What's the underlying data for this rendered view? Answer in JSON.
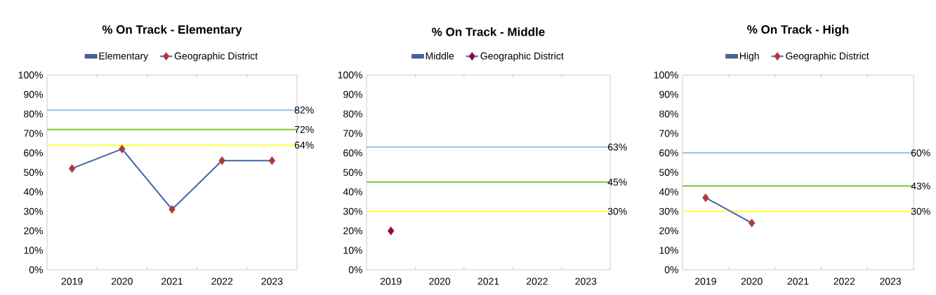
{
  "chart_data": [
    {
      "type": "line",
      "title": "% On Track - Elementary",
      "categories": [
        "2019",
        "2020",
        "2021",
        "2022",
        "2023"
      ],
      "series": [
        {
          "name": "Elementary",
          "type": "bar",
          "color": "#4360ad",
          "values": [
            null,
            null,
            null,
            null,
            null
          ]
        },
        {
          "name": "Geographic District",
          "color": "#4360ad",
          "colors": [
            "#b03a36",
            "#b03a36",
            "#b03a36",
            "#b03a36",
            "#b03a36"
          ],
          "values": [
            52,
            62,
            31,
            56,
            56
          ]
        }
      ],
      "ylim": [
        0,
        100
      ],
      "yticks": [
        {
          "value": 0,
          "label": "0%"
        },
        {
          "value": 10,
          "label": "10%"
        },
        {
          "value": 20,
          "label": "20%"
        },
        {
          "value": 30,
          "label": "30%"
        },
        {
          "value": 40,
          "label": "40%"
        },
        {
          "value": 50,
          "label": "50%"
        },
        {
          "value": 60,
          "label": "60%"
        },
        {
          "value": 70,
          "label": "70%"
        },
        {
          "value": 80,
          "label": "80%"
        },
        {
          "value": 90,
          "label": "90%"
        },
        {
          "value": 100,
          "label": "100%"
        }
      ],
      "ref_lines": [
        {
          "axis": "y",
          "value": 82,
          "label": "82%",
          "color": "#9dc8f0"
        },
        {
          "axis": "y",
          "value": 72,
          "label": "72%",
          "color": "#8ccb4a"
        },
        {
          "axis": "y",
          "value": 64,
          "label": "64%",
          "color": "#ffff55"
        }
      ],
      "marker": "diamond",
      "legend": "top"
    },
    {
      "type": "line",
      "title": "% On Track - Middle",
      "categories": [
        "2019",
        "2020",
        "2021",
        "2022",
        "2023"
      ],
      "series": [
        {
          "name": "Middle",
          "type": "bar",
          "color": "#4360ad",
          "values": [
            null,
            null,
            null,
            null,
            null
          ]
        },
        {
          "name": "Geographic District",
          "color": "#4360ad",
          "colors": [
            "#8b0a45",
            "#8b0a45",
            "#8b0a45",
            "#8b0a45",
            "#8b0a45"
          ],
          "values": [
            20,
            null,
            null,
            null,
            null
          ]
        }
      ],
      "ylim": [
        0,
        100
      ],
      "yticks": [
        {
          "value": 0,
          "label": "0%"
        },
        {
          "value": 10,
          "label": "10%"
        },
        {
          "value": 20,
          "label": "20%"
        },
        {
          "value": 30,
          "label": "30%"
        },
        {
          "value": 40,
          "label": "40%"
        },
        {
          "value": 50,
          "label": "50%"
        },
        {
          "value": 60,
          "label": "60%"
        },
        {
          "value": 70,
          "label": "70%"
        },
        {
          "value": 80,
          "label": "80%"
        },
        {
          "value": 90,
          "label": "90%"
        },
        {
          "value": 100,
          "label": "100%"
        }
      ],
      "ref_lines": [
        {
          "axis": "y",
          "value": 63,
          "label": "63%",
          "color": "#9dc8f0"
        },
        {
          "axis": "y",
          "value": 45,
          "label": "45%",
          "color": "#8ccb4a"
        },
        {
          "axis": "y",
          "value": 30,
          "label": "30%",
          "color": "#ffff55"
        }
      ],
      "marker": "diamond",
      "legend": "top"
    },
    {
      "type": "line",
      "title": "% On Track - High",
      "categories": [
        "2019",
        "2020",
        "2021",
        "2022",
        "2023"
      ],
      "series": [
        {
          "name": "High",
          "type": "bar",
          "color": "#4360ad",
          "values": [
            null,
            null,
            null,
            null,
            null
          ]
        },
        {
          "name": "Geographic District",
          "color": "#4360ad",
          "colors": [
            "#b03a36",
            "#b03a36",
            "#b03a36",
            "#b03a36",
            "#b03a36"
          ],
          "values": [
            37,
            24,
            null,
            null,
            null
          ]
        }
      ],
      "ylim": [
        0,
        100
      ],
      "yticks": [
        {
          "value": 0,
          "label": "0%"
        },
        {
          "value": 10,
          "label": "10%"
        },
        {
          "value": 20,
          "label": "20%"
        },
        {
          "value": 30,
          "label": "30%"
        },
        {
          "value": 40,
          "label": "40%"
        },
        {
          "value": 50,
          "label": "50%"
        },
        {
          "value": 60,
          "label": "60%"
        },
        {
          "value": 70,
          "label": "70%"
        },
        {
          "value": 80,
          "label": "80%"
        },
        {
          "value": 90,
          "label": "90%"
        },
        {
          "value": 100,
          "label": "100%"
        }
      ],
      "ref_lines": [
        {
          "axis": "y",
          "value": 60,
          "label": "60%",
          "color": "#9dc8f0"
        },
        {
          "axis": "y",
          "value": 43,
          "label": "43%",
          "color": "#8ccb4a"
        },
        {
          "axis": "y",
          "value": 30,
          "label": "30%",
          "color": "#ffff55"
        }
      ],
      "marker": "diamond",
      "legend": "top"
    }
  ]
}
